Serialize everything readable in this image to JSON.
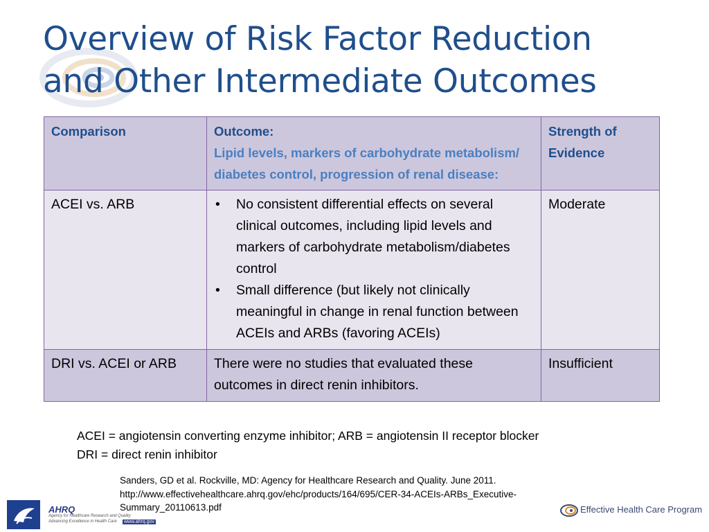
{
  "title": {
    "line1": "Overview of Risk Factor Reduction",
    "line2": "and Other Intermediate Outcomes"
  },
  "table": {
    "headers": {
      "comparison": "Comparison",
      "outcome": "Outcome:",
      "outcome_detail": "Lipid levels, markers of carbohydrate metabolism/ diabetes control, progression of renal disease:",
      "strength": "Strength of Evidence"
    },
    "rows": [
      {
        "comparison": "ACEI vs. ARB",
        "bullets": [
          "No consistent differential effects on several clinical outcomes, including lipid levels and markers of carbohydrate metabolism/diabetes control",
          "Small difference (but likely not clinically meaningful in change in renal function between ACEIs and ARBs (favoring ACEIs)"
        ],
        "strength": "Moderate"
      },
      {
        "comparison": "DRI vs. ACEI or ARB",
        "outcome": "There were no studies that evaluated these outcomes in direct renin inhibitors.",
        "strength": "Insufficient"
      }
    ]
  },
  "abbreviations": {
    "line1": "ACEI = angiotensin converting enzyme inhibitor; ARB = angiotensin II receptor blocker",
    "line2": "DRI = direct renin inhibitor"
  },
  "citation": {
    "line1": "Sanders, GD et al. Rockville, MD: Agency for Healthcare Research and Quality. June 2011.",
    "line2": "http://www.effectivehealthcare.ahrq.gov/ehc/products/164/695/CER-34-ACEIs-ARBs_Executive-",
    "line3": "Summary_20110613.pdf"
  },
  "logos": {
    "ahrq_name": "AHRQ",
    "ahrq_tagline": "Agency for Healthcare Research and Quality",
    "ahrq_tagline2": "Advancing Excellence in Health Care",
    "ahrq_url": "www.ahrq.gov",
    "ehc_name": "Effective Health Care Program"
  },
  "colors": {
    "title": "#1f4e8c",
    "header_bg": "#cdc7dd",
    "row_light": "#e8e5ef",
    "border": "#8064a2",
    "header_subtext": "#4a7fc1"
  }
}
